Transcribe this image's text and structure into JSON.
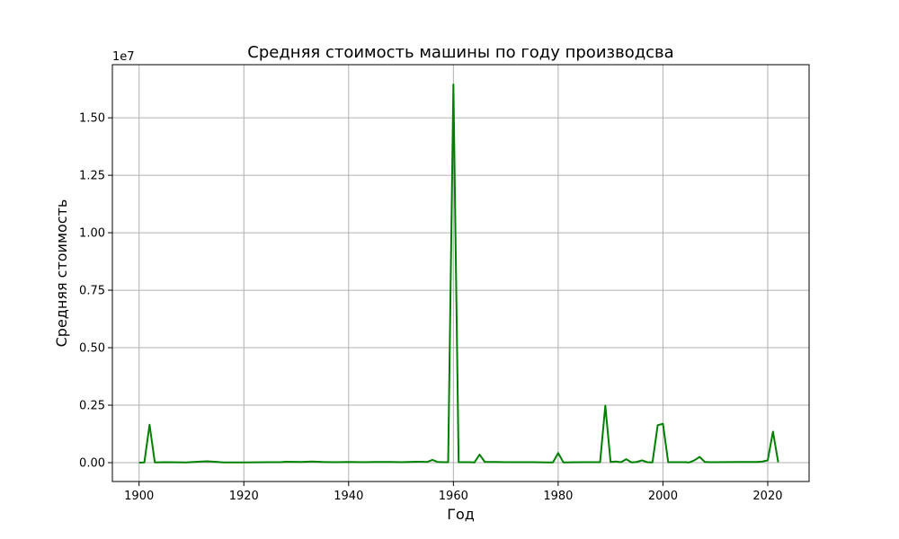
{
  "chart_data": {
    "type": "line",
    "title": "Средняя стоимость машины по году производсва",
    "xlabel": "Год",
    "ylabel": "Средняя стоимость",
    "y_offset_label": "1e7",
    "xlim": [
      1894.9,
      2027.9
    ],
    "ylim": [
      -820000,
      17310000
    ],
    "x_ticks": [
      1900,
      1920,
      1940,
      1960,
      1980,
      2000,
      2020
    ],
    "x_tick_labels": [
      "1900",
      "1920",
      "1940",
      "1960",
      "1980",
      "2000",
      "2020"
    ],
    "y_ticks": [
      0,
      2500000,
      5000000,
      7500000,
      10000000,
      12500000,
      15000000
    ],
    "y_tick_labels": [
      "0.00",
      "0.25",
      "0.50",
      "0.75",
      "1.00",
      "1.25",
      "1.50"
    ],
    "grid": true,
    "line_color": "#008000",
    "series": [
      {
        "x": [
          1900,
          1901,
          1902,
          1903,
          1905,
          1909,
          1912,
          1913,
          1915,
          1916,
          1920,
          1925,
          1927,
          1928,
          1931,
          1933,
          1935,
          1937,
          1940,
          1943,
          1945,
          1948,
          1950,
          1953,
          1954,
          1955,
          1956,
          1957,
          1958,
          1959,
          1960,
          1961,
          1963,
          1964,
          1965,
          1966,
          1968,
          1970,
          1975,
          1978,
          1979,
          1980,
          1981,
          1985,
          1988,
          1989,
          1990,
          1991,
          1992,
          1993,
          1994,
          1995,
          1996,
          1997,
          1998,
          1999,
          2000,
          2001,
          2004,
          2005,
          2006,
          2007,
          2008,
          2009,
          2010,
          2015,
          2018,
          2019,
          2020,
          2021,
          2022
        ],
        "y": [
          0,
          10000,
          1650000,
          10000,
          20000,
          10000,
          50000,
          60000,
          30000,
          10000,
          10000,
          20000,
          20000,
          40000,
          30000,
          50000,
          30000,
          20000,
          30000,
          20000,
          30000,
          30000,
          20000,
          40000,
          40000,
          30000,
          120000,
          30000,
          20000,
          20000,
          16450000,
          20000,
          20000,
          10000,
          350000,
          30000,
          30000,
          20000,
          20000,
          10000,
          10000,
          420000,
          10000,
          20000,
          20000,
          2480000,
          30000,
          50000,
          20000,
          150000,
          10000,
          30000,
          100000,
          20000,
          10000,
          1630000,
          1690000,
          20000,
          20000,
          10000,
          100000,
          250000,
          30000,
          20000,
          20000,
          30000,
          30000,
          50000,
          100000,
          1350000,
          20000
        ]
      }
    ]
  }
}
